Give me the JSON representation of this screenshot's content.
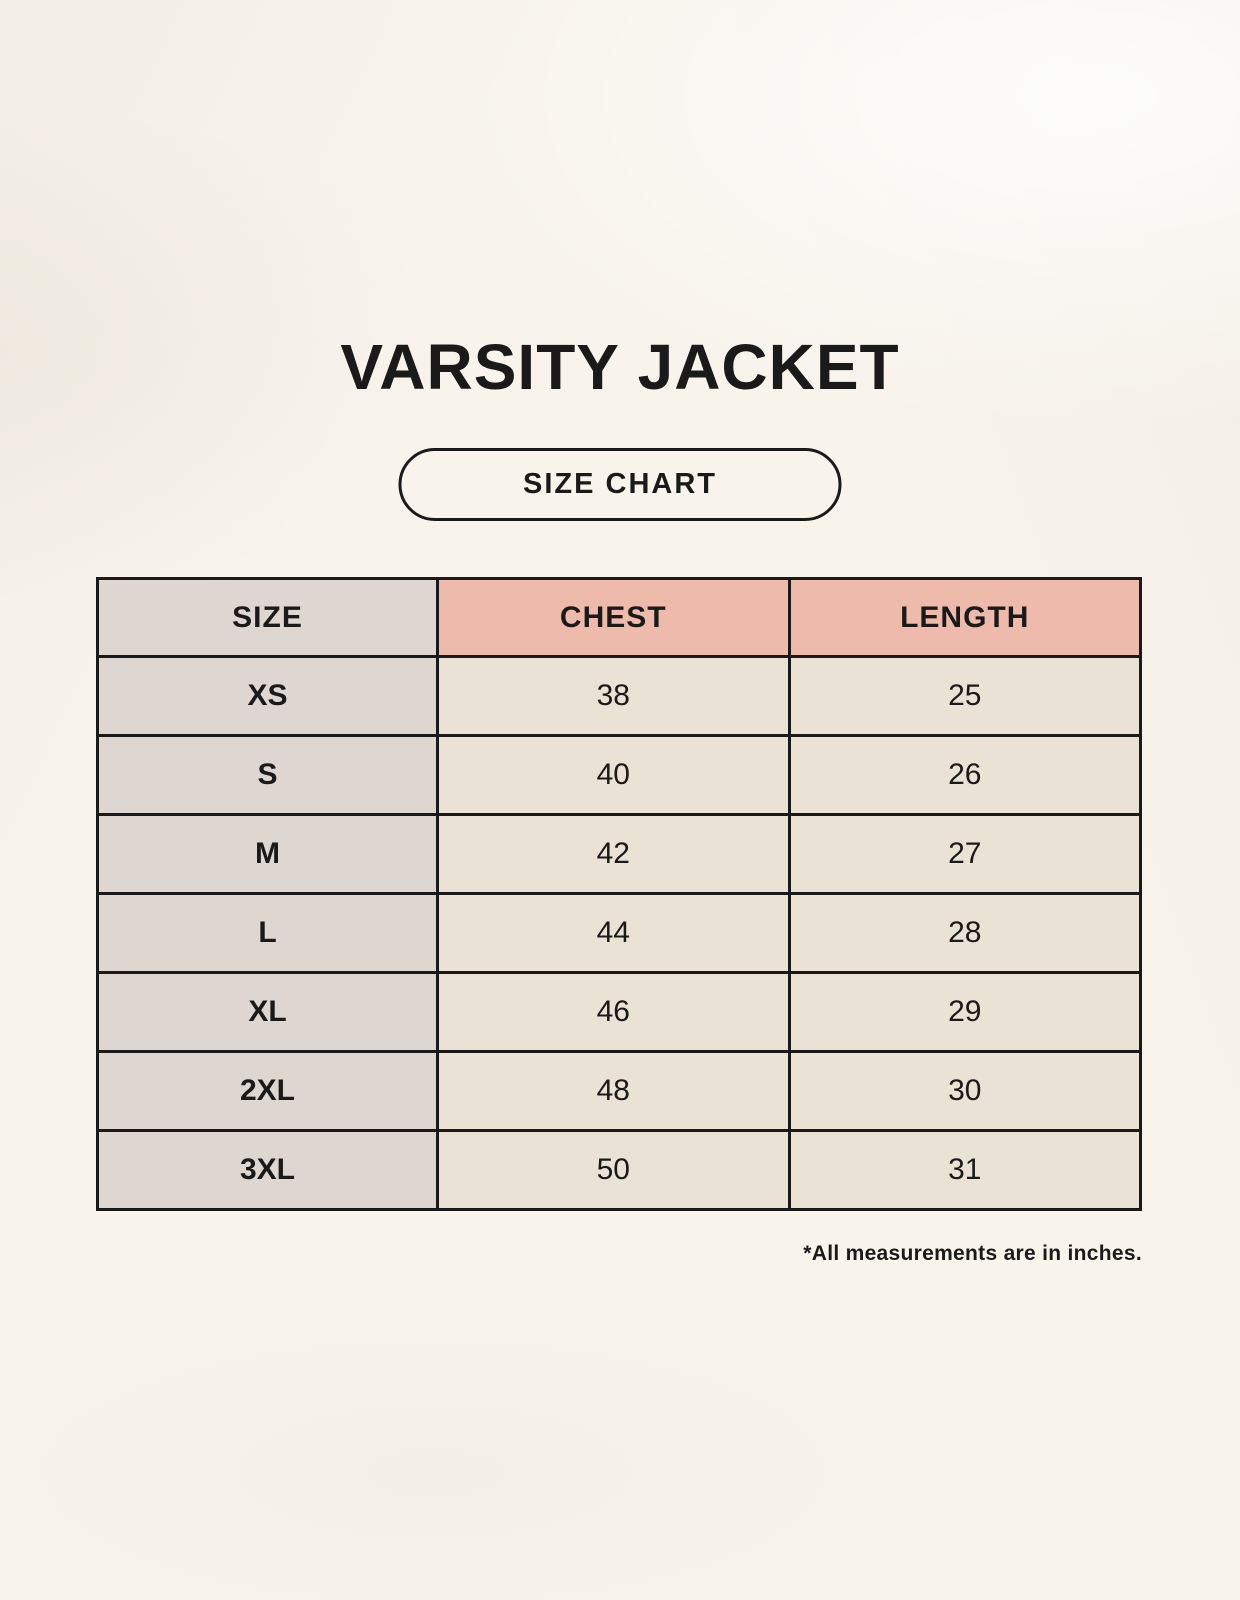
{
  "page": {
    "title": "VARSITY JACKET",
    "size_chart_label": "SIZE CHART",
    "footnote": "*All measurements are in inches."
  },
  "table": {
    "headers": [
      "SIZE",
      "CHEST",
      "LENGTH"
    ],
    "rows": [
      {
        "size": "XS",
        "chest": "38",
        "length": "25"
      },
      {
        "size": "S",
        "chest": "40",
        "length": "26"
      },
      {
        "size": "M",
        "chest": "42",
        "length": "27"
      },
      {
        "size": "L",
        "chest": "44",
        "length": "28"
      },
      {
        "size": "XL",
        "chest": "46",
        "length": "29"
      },
      {
        "size": "2XL",
        "chest": "48",
        "length": "30"
      },
      {
        "size": "3XL",
        "chest": "50",
        "length": "31"
      }
    ]
  },
  "colors": {
    "background": "#f8f4ec",
    "header_pink": "#eebaab",
    "size_column_gray": "#ddd6d1",
    "cell_cream": "#e9e2d5",
    "border": "#1a1a1a",
    "text": "#1a1a1a"
  },
  "chart_data": {
    "type": "table",
    "title": "VARSITY JACKET",
    "subtitle": "SIZE CHART",
    "columns": [
      "SIZE",
      "CHEST",
      "LENGTH"
    ],
    "rows": [
      [
        "XS",
        38,
        25
      ],
      [
        "S",
        40,
        26
      ],
      [
        "M",
        42,
        27
      ],
      [
        "L",
        44,
        28
      ],
      [
        "XL",
        46,
        29
      ],
      [
        "2XL",
        48,
        30
      ],
      [
        "3XL",
        50,
        31
      ]
    ],
    "footnote": "*All measurements are in inches."
  }
}
